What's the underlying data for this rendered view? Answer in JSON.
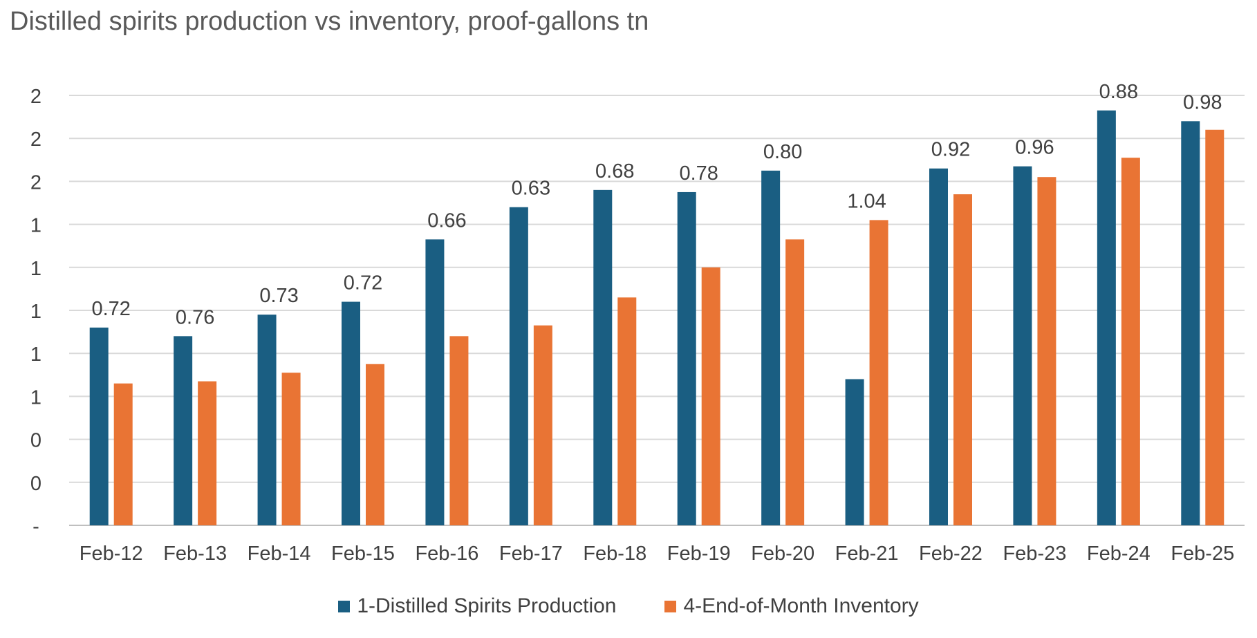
{
  "chart_data": {
    "type": "bar",
    "title": "Distilled spirits production vs inventory, proof-gallons tn",
    "xlabel": "",
    "ylabel": "",
    "categories": [
      "Feb-12",
      "Feb-13",
      "Feb-14",
      "Feb-15",
      "Feb-16",
      "Feb-17",
      "Feb-18",
      "Feb-19",
      "Feb-20",
      "Feb-21",
      "Feb-22",
      "Feb-23",
      "Feb-24",
      "Feb-25"
    ],
    "y_ticks": [
      "-",
      "0",
      "0",
      "1",
      "1",
      "1",
      "1",
      "1",
      "2",
      "2",
      "2"
    ],
    "ylim": [
      0,
      2.0
    ],
    "grid": true,
    "legend_position": "bottom",
    "series": [
      {
        "name": "1-Distilled Spirits Production",
        "color": "#1a5e82",
        "values": [
          0.92,
          0.88,
          0.98,
          1.04,
          1.33,
          1.48,
          1.56,
          1.55,
          1.65,
          0.68,
          1.66,
          1.67,
          1.93,
          1.88
        ]
      },
      {
        "name": "4-End-of-Month Inventory",
        "color": "#e97434",
        "values": [
          0.66,
          0.67,
          0.71,
          0.75,
          0.88,
          0.93,
          1.06,
          1.2,
          1.33,
          1.42,
          1.54,
          1.62,
          1.71,
          1.84
        ]
      }
    ],
    "data_labels": [
      "0.72",
      "0.76",
      "0.73",
      "0.72",
      "0.66",
      "0.63",
      "0.68",
      "0.78",
      "0.80",
      "1.04",
      "0.92",
      "0.96",
      "0.88",
      "0.98"
    ]
  }
}
